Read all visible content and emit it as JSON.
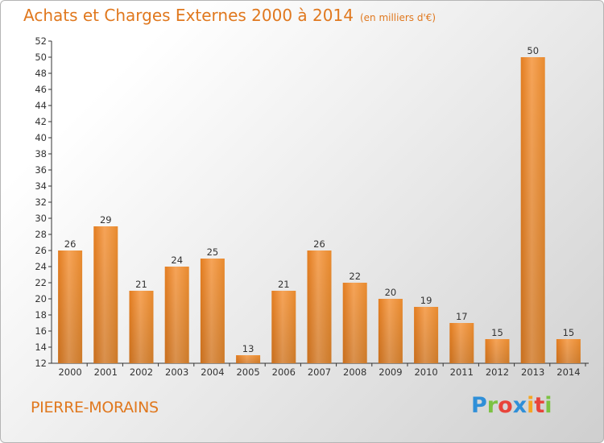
{
  "chart_data": {
    "type": "bar",
    "title": "Achats et Charges Externes 2000 à 2014",
    "subtitle": "(en milliers d'€)",
    "categories": [
      "2000",
      "2001",
      "2002",
      "2003",
      "2004",
      "2005",
      "2006",
      "2007",
      "2008",
      "2009",
      "2010",
      "2011",
      "2012",
      "2013",
      "2014"
    ],
    "values": [
      26,
      29,
      21,
      24,
      25,
      13,
      21,
      26,
      22,
      20,
      19,
      17,
      15,
      50,
      15
    ],
    "ylim": [
      12,
      52
    ],
    "yticks": [
      12,
      14,
      16,
      18,
      20,
      22,
      24,
      26,
      28,
      30,
      32,
      34,
      36,
      38,
      40,
      42,
      44,
      46,
      48,
      50,
      52
    ],
    "grid": false,
    "bar_color": "#f0902e",
    "xlabel": "",
    "ylabel": ""
  },
  "footer": {
    "commune": "PIERRE-MORAINS",
    "logo_letters": [
      "P",
      "r",
      "o",
      "x",
      "i",
      "t",
      "i"
    ],
    "logo_colors": [
      "#2f8fd8",
      "#7cc242",
      "#e8443a",
      "#2f8fd8",
      "#f5a623",
      "#e8443a",
      "#7cc242"
    ]
  },
  "colors": {
    "title": "#e0781e",
    "axis": "#333333"
  }
}
